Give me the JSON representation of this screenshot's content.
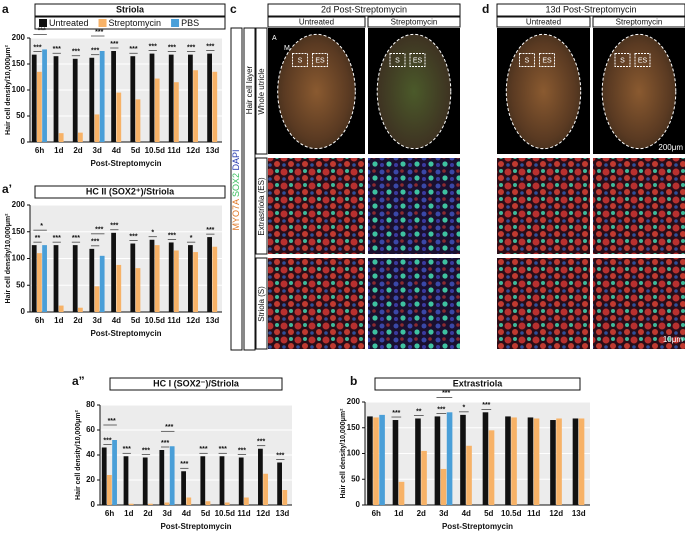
{
  "chart_data": [
    {
      "type": "bar",
      "panel_label": "a",
      "title": "Striola",
      "y_label": "Hair cell density/10,000μm²",
      "x_label": "Post-Streptomycin",
      "legend": true,
      "grid": true,
      "categories": [
        "6h",
        "1d",
        "2d",
        "3d",
        "4d",
        "5d",
        "10.5d",
        "11d",
        "12d",
        "13d"
      ],
      "series": [
        {
          "name": "Untreated",
          "color": "#111111",
          "values": [
            168,
            165,
            160,
            162,
            175,
            165,
            170,
            168,
            168,
            170
          ]
        },
        {
          "name": "Streptomycin",
          "color": "#f7b267",
          "values": [
            135,
            17,
            18,
            53,
            95,
            82,
            122,
            115,
            138,
            135
          ]
        },
        {
          "name": "PBS",
          "color": "#4a9fd8",
          "values": [
            178,
            null,
            null,
            175,
            null,
            null,
            null,
            null,
            null,
            null
          ]
        }
      ],
      "significance": [
        "***",
        "***",
        "***",
        "***",
        "***",
        "***",
        "***",
        "***",
        "***",
        "***"
      ],
      "significance_pbs": [
        "***",
        null,
        null,
        "***",
        null,
        null,
        null,
        null,
        null,
        null
      ],
      "ylim": [
        0,
        200
      ],
      "yticks": [
        0,
        50,
        100,
        150,
        200
      ]
    },
    {
      "type": "bar",
      "panel_label": "a’",
      "title": "HC II (SOX2⁺)/Striola",
      "y_label": "Hair cell density/10,000μm²",
      "x_label": "Post-Streptomycin",
      "legend": false,
      "grid": true,
      "categories": [
        "6h",
        "1d",
        "2d",
        "3d",
        "4d",
        "5d",
        "10.5d",
        "11d",
        "12d",
        "13d"
      ],
      "series": [
        {
          "color": "#111111",
          "values": [
            125,
            125,
            125,
            118,
            148,
            128,
            135,
            130,
            125,
            140
          ]
        },
        {
          "color": "#f7b267",
          "values": [
            110,
            12,
            8,
            48,
            88,
            82,
            125,
            115,
            112,
            122
          ]
        },
        {
          "color": "#4a9fd8",
          "values": [
            125,
            null,
            null,
            105,
            null,
            null,
            null,
            null,
            null,
            null
          ]
        }
      ],
      "significance": [
        "**",
        "***",
        "***",
        "***",
        "***",
        "***",
        "*",
        "***",
        "*",
        "***"
      ],
      "significance_pbs": [
        "*",
        null,
        null,
        "***",
        null,
        null,
        null,
        null,
        null,
        null
      ],
      "ylim": [
        0,
        200
      ],
      "yticks": [
        0,
        50,
        100,
        150,
        200
      ]
    },
    {
      "type": "bar",
      "panel_label": "a”",
      "title": "HC I (SOX2⁻)/Striola",
      "y_label": "Hair cell density/10,000μm²",
      "x_label": "Post-Streptomycin",
      "legend": false,
      "grid": true,
      "categories": [
        "6h",
        "1d",
        "2d",
        "3d",
        "4d",
        "5d",
        "10.5d",
        "11d",
        "12d",
        "13d"
      ],
      "series": [
        {
          "color": "#111111",
          "values": [
            46,
            39,
            38,
            44,
            27,
            39,
            39,
            38,
            45,
            34
          ]
        },
        {
          "color": "#f7b267",
          "values": [
            24,
            1,
            1,
            2,
            6,
            3,
            2,
            6,
            25,
            12
          ]
        },
        {
          "color": "#4a9fd8",
          "values": [
            52,
            null,
            null,
            47,
            null,
            null,
            null,
            null,
            null,
            null
          ]
        }
      ],
      "significance": [
        "***",
        "***",
        "***",
        "***",
        "***",
        "***",
        "***",
        "***",
        "***",
        "***"
      ],
      "significance_pbs": [
        "***",
        null,
        null,
        "***",
        null,
        null,
        null,
        null,
        null,
        null
      ],
      "ylim": [
        0,
        80
      ],
      "yticks": [
        0,
        20,
        40,
        60,
        80
      ]
    },
    {
      "type": "bar",
      "panel_label": "b",
      "title": "Extrastriola",
      "y_label": "Hair cell density/10,000μm²",
      "x_label": "Post-Streptomycin",
      "legend": false,
      "grid": true,
      "categories": [
        "6h",
        "1d",
        "2d",
        "3d",
        "4d",
        "5d",
        "10.5d",
        "11d",
        "12d",
        "13d"
      ],
      "series": [
        {
          "color": "#111111",
          "values": [
            172,
            165,
            168,
            172,
            175,
            180,
            172,
            170,
            165,
            168
          ]
        },
        {
          "color": "#f7b267",
          "values": [
            170,
            45,
            105,
            70,
            115,
            145,
            170,
            168,
            168,
            168
          ]
        },
        {
          "color": "#4a9fd8",
          "values": [
            175,
            null,
            null,
            180,
            null,
            null,
            null,
            null,
            null,
            null
          ]
        }
      ],
      "significance": [
        null,
        "***",
        "**",
        "***",
        "*",
        "***",
        null,
        null,
        null,
        null
      ],
      "significance_pbs": [
        null,
        null,
        null,
        "***",
        null,
        null,
        null,
        null,
        null,
        null
      ],
      "ylim": [
        0,
        200
      ],
      "yticks": [
        0,
        50,
        100,
        150,
        200
      ]
    }
  ],
  "image_panels": [
    {
      "panel_label": "c",
      "title": "2d Post-Streptomycin",
      "columns": [
        "Untreated",
        "Streptomycin"
      ]
    },
    {
      "panel_label": "d",
      "title": "13d Post-Streptomycin",
      "columns": [
        "Untreated",
        "Streptomycin"
      ],
      "scale_bars": [
        "200μm",
        "10μm"
      ]
    }
  ],
  "stain_labels": [
    "MYO7A",
    "SOX2",
    "DAPI"
  ],
  "layer_label": "Hair cell layer",
  "row_labels": [
    "Whole utricle",
    "Extrastriola (ES)",
    "Striola (S)"
  ],
  "roi_labels": [
    "S",
    "ES"
  ],
  "orientation": [
    "A",
    "M"
  ]
}
